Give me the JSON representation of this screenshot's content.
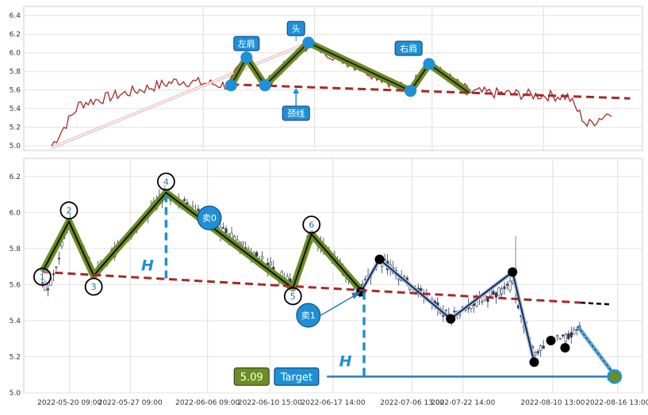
{
  "chart_data": [
    {
      "type": "line",
      "panel": "top",
      "ylim": [
        4.95,
        6.5
      ],
      "yticks": [
        5.0,
        5.2,
        5.4,
        5.6,
        5.8,
        6.0,
        6.2,
        6.4
      ],
      "grid": true,
      "pattern_points": [
        {
          "x": 0.335,
          "y": 5.65
        },
        {
          "x": 0.36,
          "y": 5.95
        },
        {
          "x": 0.39,
          "y": 5.65
        },
        {
          "x": 0.46,
          "y": 6.11
        },
        {
          "x": 0.625,
          "y": 5.59
        },
        {
          "x": 0.655,
          "y": 5.88
        },
        {
          "x": 0.72,
          "y": 5.57
        }
      ],
      "neckline": {
        "from": [
          0.335,
          5.66
        ],
        "to": [
          0.98,
          5.51
        ]
      },
      "labels": {
        "left_shoulder": "左肩",
        "head": "头",
        "right_shoulder": "右肩",
        "neckline": "颈线"
      }
    },
    {
      "type": "candlestick",
      "panel": "bottom",
      "ylim": [
        5.0,
        6.3
      ],
      "yticks": [
        5.0,
        5.2,
        5.4,
        5.6,
        5.8,
        6.0,
        6.2
      ],
      "grid": true,
      "xtick_labels": [
        "2022-05-20 09:00",
        "2022-05-27 09:00",
        "2022-06-06 09:00",
        "2022-06-10 15:00",
        "2022-06-17 14:00",
        "2022-07-06 13:00",
        "2022-07-22 14:00",
        "2022-08-10 13:00",
        "2022-08-16 13:00"
      ],
      "wave_points": [
        {
          "label": "1",
          "x": 0.03,
          "y": 5.67
        },
        {
          "label": "2",
          "x": 0.073,
          "y": 5.95
        },
        {
          "label": "3",
          "x": 0.113,
          "y": 5.65
        },
        {
          "label": "4",
          "x": 0.23,
          "y": 6.11
        },
        {
          "label": "5",
          "x": 0.435,
          "y": 5.58
        },
        {
          "label": "6",
          "x": 0.465,
          "y": 5.88
        },
        {
          "label": "",
          "x": 0.545,
          "y": 5.57
        }
      ],
      "after_points": [
        {
          "x": 0.545,
          "y": 5.56
        },
        {
          "x": 0.575,
          "y": 5.74
        },
        {
          "x": 0.69,
          "y": 5.41
        },
        {
          "x": 0.79,
          "y": 5.67
        },
        {
          "x": 0.825,
          "y": 5.17
        },
        {
          "x": 0.852,
          "y": 5.29
        },
        {
          "x": 0.875,
          "y": 5.25
        }
      ],
      "neckline": {
        "from": [
          0.03,
          5.67
        ],
        "to": [
          0.9,
          5.5
        ]
      },
      "neckline_ext": {
        "from": [
          0.9,
          5.5
        ],
        "to": [
          0.95,
          5.49
        ]
      },
      "height_H": 0.47,
      "target": 5.09,
      "annotations": {
        "sell0": "卖0",
        "sell1": "卖1",
        "H": "H",
        "target_value": "5.09",
        "target_label": "Target"
      }
    }
  ]
}
